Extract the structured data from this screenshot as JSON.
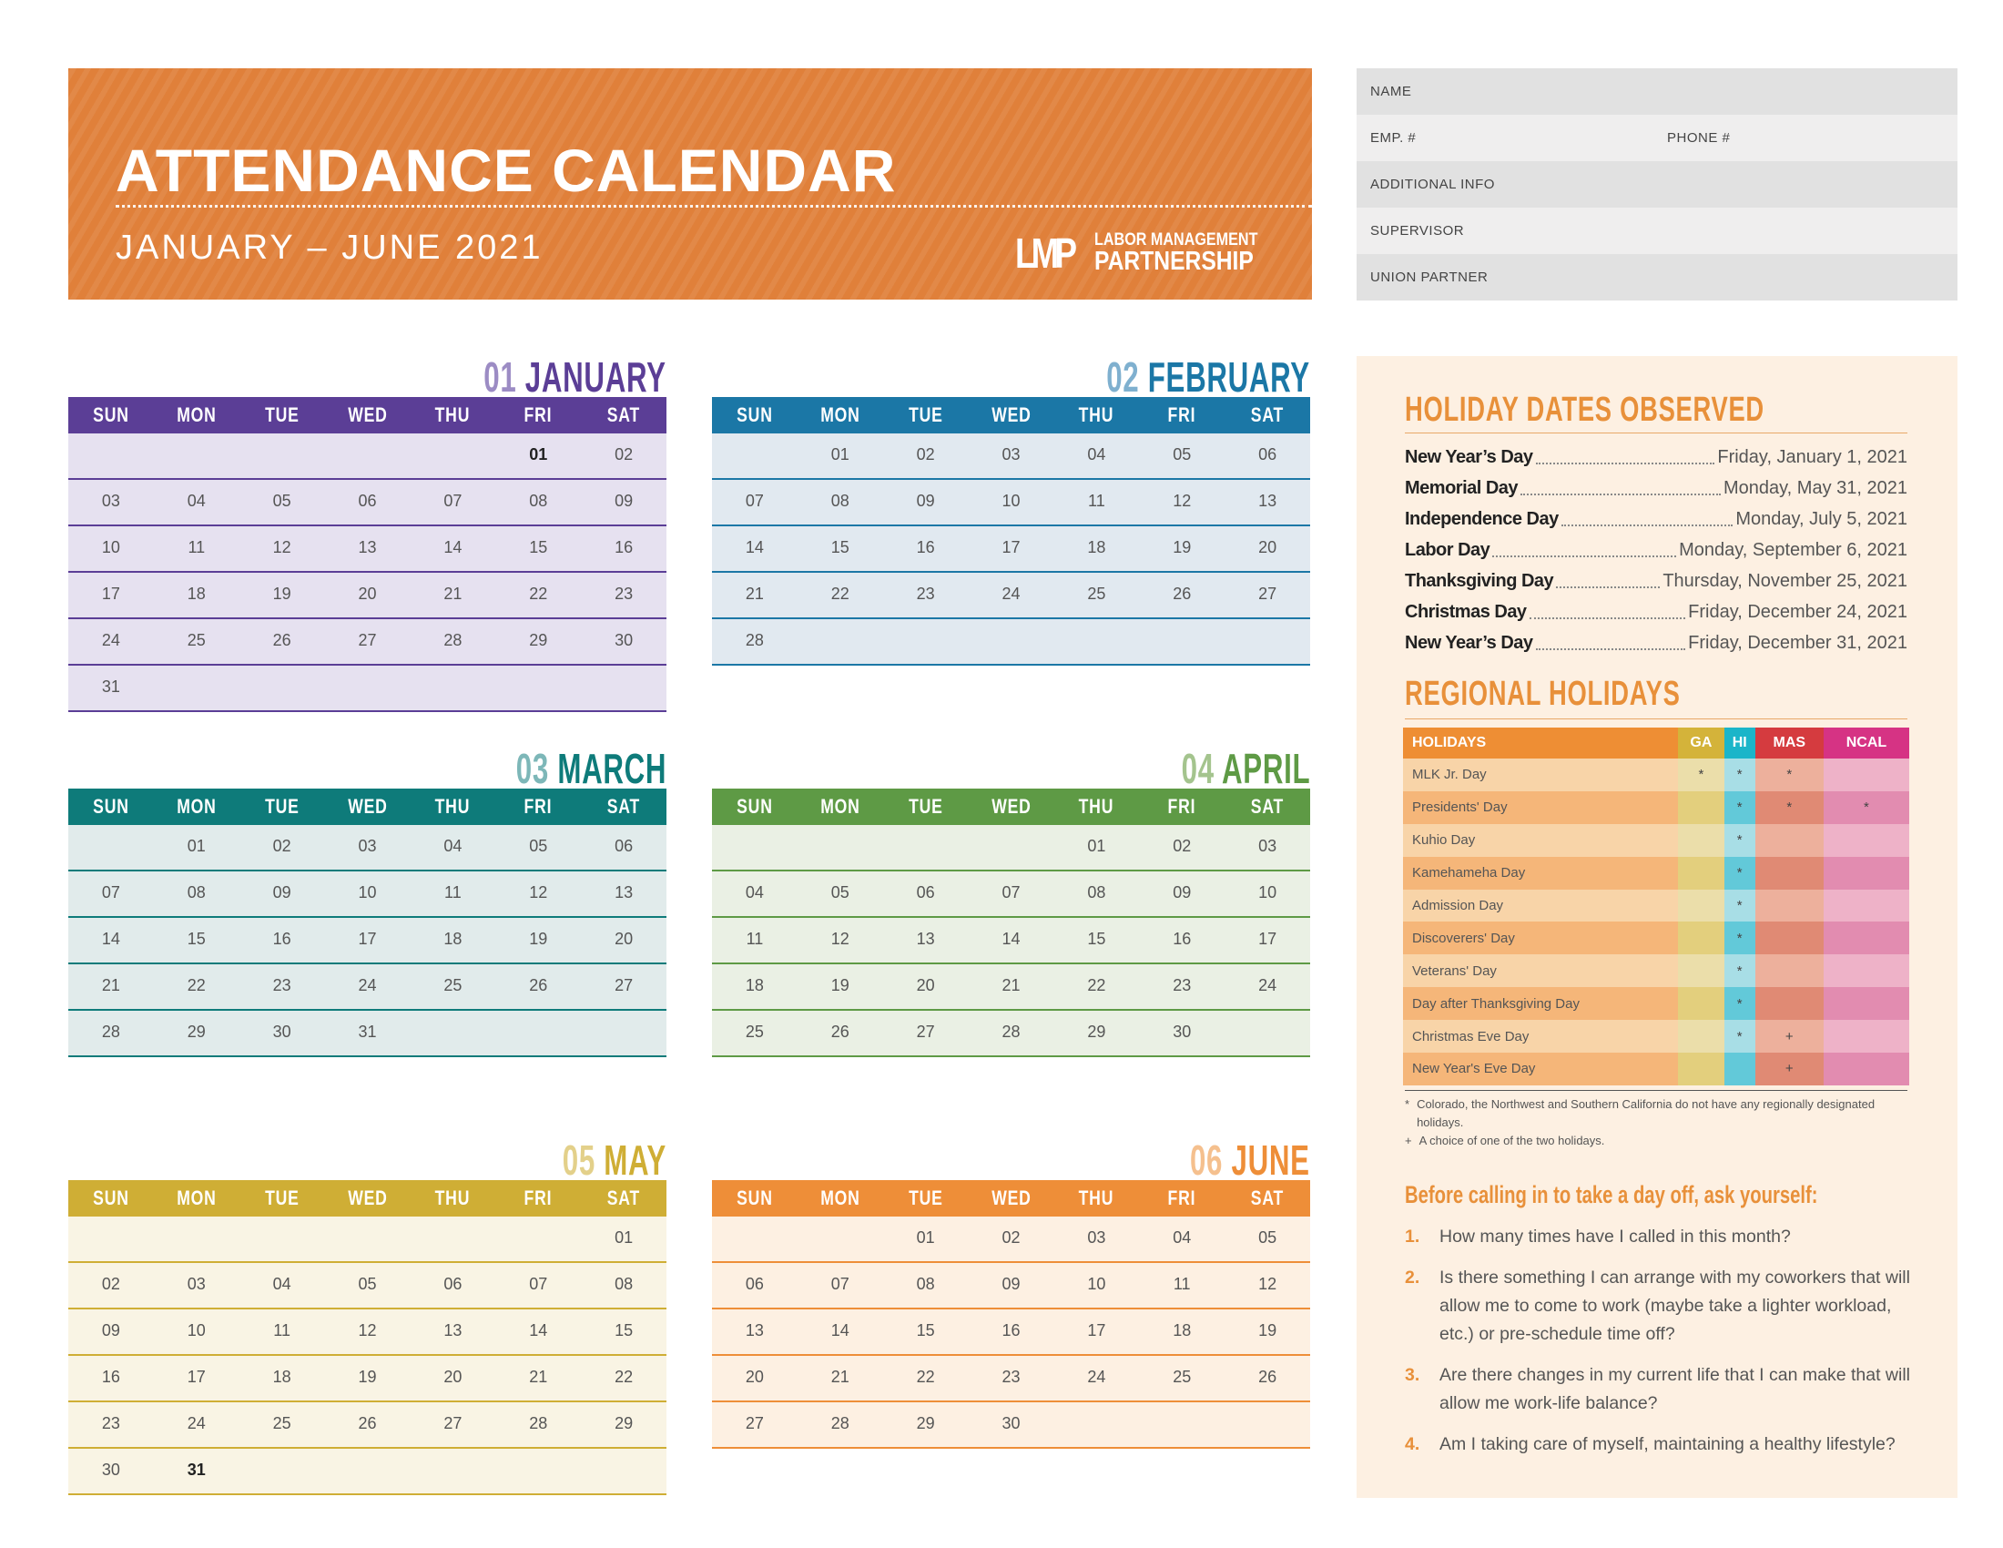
{
  "header": {
    "title": "ATTENDANCE CALENDAR",
    "subtitle": "JANUARY – JUNE 2021",
    "logo_mark": "LMP",
    "logo_line1": "LABOR MANAGEMENT",
    "logo_line2": "PARTNERSHIP",
    "color": "#E0803A"
  },
  "form": {
    "name": "NAME",
    "emp": "EMP. #",
    "phone": "PHONE #",
    "additional": "ADDITIONAL INFO",
    "supervisor": "SUPERVISOR",
    "union_partner": "UNION PARTNER"
  },
  "day_headers": [
    "SUN",
    "MON",
    "TUE",
    "WED",
    "THU",
    "FRI",
    "SAT"
  ],
  "months": [
    {
      "num": "01",
      "name": "JANUARY",
      "color": "#5B3E96",
      "num_color": "#9C8CC4",
      "bg": "#E6E1F0",
      "holidays": [
        "01"
      ],
      "weeks": [
        [
          "",
          "",
          "",
          "",
          "",
          "01",
          "02"
        ],
        [
          "03",
          "04",
          "05",
          "06",
          "07",
          "08",
          "09"
        ],
        [
          "10",
          "11",
          "12",
          "13",
          "14",
          "15",
          "16"
        ],
        [
          "17",
          "18",
          "19",
          "20",
          "21",
          "22",
          "23"
        ],
        [
          "24",
          "25",
          "26",
          "27",
          "28",
          "29",
          "30"
        ],
        [
          "31",
          "",
          "",
          "",
          "",
          "",
          ""
        ]
      ]
    },
    {
      "num": "02",
      "name": "FEBRUARY",
      "color": "#1B77A6",
      "num_color": "#7FB0CF",
      "bg": "#E1E9F0",
      "holidays": [],
      "weeks": [
        [
          "",
          "01",
          "02",
          "03",
          "04",
          "05",
          "06"
        ],
        [
          "07",
          "08",
          "09",
          "10",
          "11",
          "12",
          "13"
        ],
        [
          "14",
          "15",
          "16",
          "17",
          "18",
          "19",
          "20"
        ],
        [
          "21",
          "22",
          "23",
          "24",
          "25",
          "26",
          "27"
        ],
        [
          "28",
          "",
          "",
          "",
          "",
          "",
          ""
        ]
      ]
    },
    {
      "num": "03",
      "name": "MARCH",
      "color": "#0E7B7A",
      "num_color": "#7DB7B8",
      "bg": "#E1EBEB",
      "holidays": [],
      "weeks": [
        [
          "",
          "01",
          "02",
          "03",
          "04",
          "05",
          "06"
        ],
        [
          "07",
          "08",
          "09",
          "10",
          "11",
          "12",
          "13"
        ],
        [
          "14",
          "15",
          "16",
          "17",
          "18",
          "19",
          "20"
        ],
        [
          "21",
          "22",
          "23",
          "24",
          "25",
          "26",
          "27"
        ],
        [
          "28",
          "29",
          "30",
          "31",
          "",
          "",
          ""
        ]
      ]
    },
    {
      "num": "04",
      "name": "APRIL",
      "color": "#5E9A45",
      "num_color": "#A4C48E",
      "bg": "#EAF0E4",
      "holidays": [],
      "weeks": [
        [
          "",
          "",
          "",
          "",
          "01",
          "02",
          "03"
        ],
        [
          "04",
          "05",
          "06",
          "07",
          "08",
          "09",
          "10"
        ],
        [
          "11",
          "12",
          "13",
          "14",
          "15",
          "16",
          "17"
        ],
        [
          "18",
          "19",
          "20",
          "21",
          "22",
          "23",
          "24"
        ],
        [
          "25",
          "26",
          "27",
          "28",
          "29",
          "30",
          ""
        ]
      ]
    },
    {
      "num": "05",
      "name": "MAY",
      "color": "#CFAE35",
      "num_color": "#E3D08A",
      "bg": "#F9F4E4",
      "holidays": [
        "31"
      ],
      "weeks": [
        [
          "",
          "",
          "",
          "",
          "",
          "",
          "01"
        ],
        [
          "02",
          "03",
          "04",
          "05",
          "06",
          "07",
          "08"
        ],
        [
          "09",
          "10",
          "11",
          "12",
          "13",
          "14",
          "15"
        ],
        [
          "16",
          "17",
          "18",
          "19",
          "20",
          "21",
          "22"
        ],
        [
          "23",
          "24",
          "25",
          "26",
          "27",
          "28",
          "29"
        ],
        [
          "30",
          "31",
          "",
          "",
          "",
          "",
          ""
        ]
      ]
    },
    {
      "num": "06",
      "name": "JUNE",
      "color": "#EE8E38",
      "num_color": "#F5C08E",
      "bg": "#FDF0E2",
      "holidays": [],
      "weeks": [
        [
          "",
          "",
          "01",
          "02",
          "03",
          "04",
          "05"
        ],
        [
          "06",
          "07",
          "08",
          "09",
          "10",
          "11",
          "12"
        ],
        [
          "13",
          "14",
          "15",
          "16",
          "17",
          "18",
          "19"
        ],
        [
          "20",
          "21",
          "22",
          "23",
          "24",
          "25",
          "26"
        ],
        [
          "27",
          "28",
          "29",
          "30",
          "",
          "",
          ""
        ]
      ]
    }
  ],
  "holiday_dates": {
    "title": "HOLIDAY DATES OBSERVED",
    "items": [
      {
        "name": "New Year’s Day",
        "date": "Friday, January 1, 2021"
      },
      {
        "name": "Memorial Day",
        "date": "Monday, May 31, 2021"
      },
      {
        "name": "Independence Day",
        "date": "Monday, July 5, 2021"
      },
      {
        "name": "Labor Day",
        "date": "Monday, September 6, 2021"
      },
      {
        "name": "Thanksgiving Day",
        "date": "Thursday, November 25, 2021"
      },
      {
        "name": "Christmas Day",
        "date": "Friday, December 24, 2021"
      },
      {
        "name": "New Year’s Day",
        "date": "Friday, December 31, 2021"
      }
    ]
  },
  "regional": {
    "title": "REGIONAL HOLIDAYS",
    "columns": [
      "HOLIDAYS",
      "GA",
      "HI",
      "MAS",
      "NCAL"
    ],
    "header_colors": [
      "#EE8E34",
      "#D4B33A",
      "#1BB5C9",
      "#D53B3F",
      "#D63384"
    ],
    "light_colors": [
      "#F8D4A8",
      "#EBDEAA",
      "#A8DEE6",
      "#EDB09C",
      "#EEB2C8"
    ],
    "dark_colors": [
      "#F5B679",
      "#E3CF7D",
      "#62C9D9",
      "#E08A74",
      "#E28CB0"
    ],
    "rows": [
      [
        "MLK Jr. Day",
        "*",
        "*",
        "*",
        ""
      ],
      [
        "Presidents' Day",
        "",
        "*",
        "*",
        "*"
      ],
      [
        "Kuhio Day",
        "",
        "*",
        "",
        ""
      ],
      [
        "Kamehameha Day",
        "",
        "*",
        "",
        ""
      ],
      [
        "Admission Day",
        "",
        "*",
        "",
        ""
      ],
      [
        "Discoverers' Day",
        "",
        "*",
        "",
        ""
      ],
      [
        "Veterans' Day",
        "",
        "*",
        "",
        ""
      ],
      [
        "Day after Thanksgiving Day",
        "",
        "*",
        "",
        ""
      ],
      [
        "Christmas Eve Day",
        "",
        "*",
        "+",
        ""
      ],
      [
        "New Year's Eve Day",
        "",
        "",
        "+",
        ""
      ]
    ],
    "notes": [
      {
        "sym": "*",
        "text": "Colorado, the Northwest and Southern California do not have any regionally designated holidays."
      },
      {
        "sym": "+",
        "text": "A choice of one of the two holidays."
      }
    ]
  },
  "ask": {
    "title": "Before calling in to take a day off, ask yourself:",
    "items": [
      {
        "num": "1.",
        "text": "How many times have I called in this month?"
      },
      {
        "num": "2.",
        "text": "Is there something I can arrange with my coworkers that will allow me to come to work (maybe take a lighter workload, etc.) or pre-schedule time off?"
      },
      {
        "num": "3.",
        "text": "Are there changes in my current life that I can make that will allow me work-life balance?"
      },
      {
        "num": "4.",
        "text": "Am I taking care of myself, maintaining a healthy lifestyle?"
      }
    ]
  }
}
